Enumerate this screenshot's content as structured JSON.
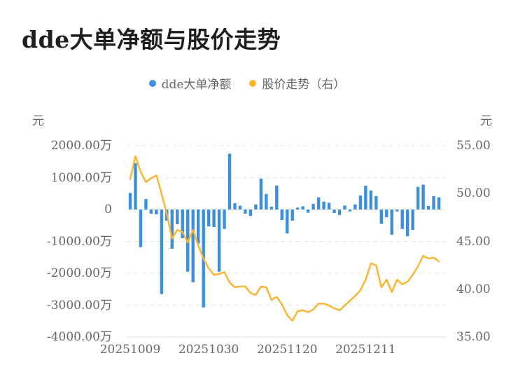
{
  "page": {
    "title": "dde大单净额与股价走势"
  },
  "legend": {
    "items": [
      {
        "label": "dde大单净额",
        "color": "#3e8ede"
      },
      {
        "label": "股价走势（右）",
        "color": "#fbb42f"
      }
    ]
  },
  "left_axis": {
    "unit": "元",
    "ticks": [
      {
        "label": "2000.00万",
        "value": 2000
      },
      {
        "label": "1000.00万",
        "value": 1000
      },
      {
        "label": "0",
        "value": 0
      },
      {
        "label": "-1000.00万",
        "value": -1000
      },
      {
        "label": "-2000.00万",
        "value": -2000
      },
      {
        "label": "-3000.00万",
        "value": -3000
      },
      {
        "label": "-4000.00万",
        "value": -4000
      }
    ]
  },
  "right_axis": {
    "unit": "元",
    "ticks": [
      {
        "label": "55.00",
        "value": 55
      },
      {
        "label": "50.00",
        "value": 50
      },
      {
        "label": "45.00",
        "value": 45
      },
      {
        "label": "40.00",
        "value": 40
      },
      {
        "label": "35.00",
        "value": 35
      }
    ]
  },
  "x_axis": {
    "labels": [
      {
        "label": "20251009",
        "index": 0
      },
      {
        "label": "20251030",
        "index": 15
      },
      {
        "label": "20251120",
        "index": 30
      },
      {
        "label": "20251211",
        "index": 45
      }
    ]
  },
  "chart_data": {
    "type": "bar+line",
    "title": "dde大单净额与股价走势",
    "grid": "horizontal dashed",
    "legend_position": "top-center",
    "x_tick_labels_shown": [
      "20251009",
      "20251030",
      "20251120",
      "20251211"
    ],
    "left_axis": {
      "unit": "元",
      "tick_unit": "万",
      "min": -4000,
      "max": 2000,
      "step": 1000
    },
    "right_axis": {
      "unit": "元",
      "min": 35,
      "max": 55,
      "step": 5
    },
    "categories": [
      "20251009",
      "20251010",
      "20251013",
      "20251014",
      "20251015",
      "20251016",
      "20251017",
      "20251020",
      "20251021",
      "20251022",
      "20251023",
      "20251024",
      "20251027",
      "20251028",
      "20251029",
      "20251030",
      "20251031",
      "20251103",
      "20251104",
      "20251105",
      "20251106",
      "20251107",
      "20251110",
      "20251111",
      "20251112",
      "20251113",
      "20251114",
      "20251117",
      "20251118",
      "20251119",
      "20251120",
      "20251121",
      "20251124",
      "20251125",
      "20251126",
      "20251127",
      "20251128",
      "20251201",
      "20251202",
      "20251203",
      "20251204",
      "20251205",
      "20251208",
      "20251209",
      "20251210",
      "20251211",
      "20251212",
      "20251215",
      "20251216",
      "20251217",
      "20251218",
      "20251219",
      "20251222",
      "20251223",
      "20251224",
      "20251225",
      "20251226",
      "20251229",
      "20251230",
      "20251231"
    ],
    "series": [
      {
        "name": "dde大单净额",
        "type": "bar",
        "axis": "left",
        "unit": "万元",
        "color": "#3e8ede",
        "values": [
          520,
          1450,
          -1180,
          330,
          -130,
          -150,
          -2650,
          -350,
          -1230,
          -460,
          -900,
          -1950,
          -2280,
          -1070,
          -3070,
          -530,
          -550,
          -1950,
          -610,
          1750,
          200,
          120,
          -130,
          -200,
          160,
          970,
          490,
          90,
          750,
          -330,
          -750,
          -350,
          60,
          100,
          -100,
          175,
          380,
          250,
          210,
          -110,
          -170,
          125,
          -60,
          160,
          440,
          745,
          600,
          420,
          -450,
          -240,
          -790,
          -60,
          -610,
          -840,
          -640,
          710,
          780,
          110,
          420,
          380
        ]
      },
      {
        "name": "股价走势（右）",
        "type": "line",
        "axis": "right",
        "unit": "元",
        "color": "#fbb42f",
        "values": [
          51.5,
          53.9,
          52.3,
          51.2,
          51.6,
          51.9,
          50.0,
          47.9,
          45.3,
          46.2,
          46.0,
          44.9,
          46.2,
          44.6,
          43.2,
          42.2,
          41.5,
          41.6,
          41.8,
          40.7,
          40.2,
          40.3,
          40.3,
          39.6,
          39.4,
          40.3,
          40.2,
          38.9,
          39.2,
          38.4,
          37.3,
          36.7,
          37.7,
          37.8,
          37.6,
          37.9,
          38.5,
          38.5,
          38.3,
          38.0,
          37.8,
          38.3,
          38.8,
          39.3,
          39.9,
          41.0,
          42.7,
          42.5,
          40.2,
          41.0,
          39.7,
          41.0,
          40.5,
          40.8,
          41.5,
          42.4,
          43.5,
          43.2,
          43.3,
          42.9
        ]
      }
    ]
  }
}
